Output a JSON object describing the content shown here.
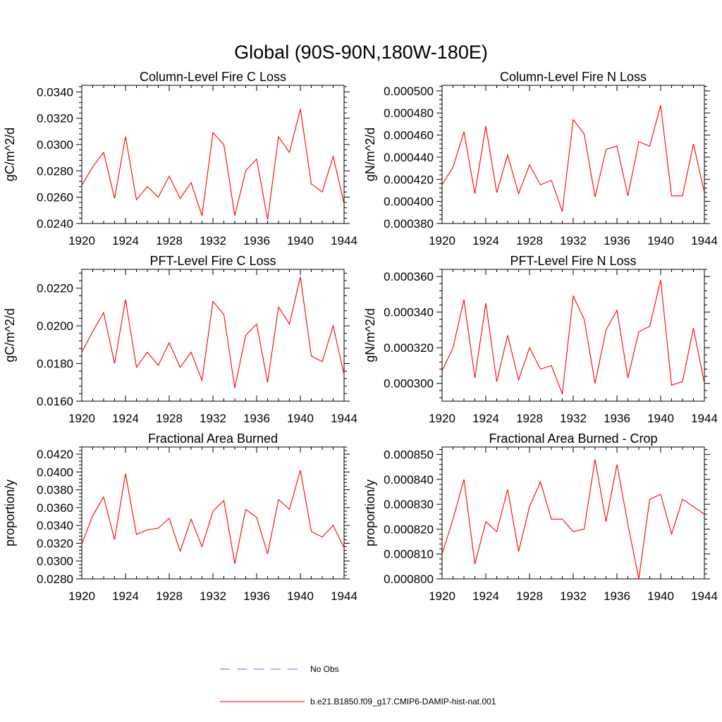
{
  "page_title": "Global (90S-90N,180W-180E)",
  "legend": {
    "entries": [
      {
        "label": "No Obs",
        "color": "#6a6acd",
        "style": "dashed"
      },
      {
        "label": "b.e21.B1850.f09_g17.CMIP6-DAMIP-hist-nat.001",
        "color": "#ff0000",
        "style": "solid"
      }
    ]
  },
  "chart_data": [
    {
      "type": "line",
      "title": "Column-Level Fire C Loss",
      "ylabel": "gC/m^2/d",
      "xlim": [
        1920,
        1944
      ],
      "ylim": [
        0.024,
        0.0345
      ],
      "xticks": [
        "1920",
        "1924",
        "1928",
        "1932",
        "1936",
        "1940",
        "1944"
      ],
      "yticks": [
        "0.0240",
        "0.0260",
        "0.0280",
        "0.0300",
        "0.0320",
        "0.0340"
      ],
      "x": [
        1920,
        1921,
        1922,
        1923,
        1924,
        1925,
        1926,
        1927,
        1928,
        1929,
        1930,
        1931,
        1932,
        1933,
        1934,
        1935,
        1936,
        1937,
        1938,
        1939,
        1940,
        1941,
        1942,
        1943,
        1944
      ],
      "series": [
        {
          "color": "#ff0000",
          "values": [
            0.0269,
            0.0283,
            0.0294,
            0.0259,
            0.0306,
            0.0258,
            0.0268,
            0.026,
            0.0276,
            0.0259,
            0.0271,
            0.0246,
            0.0309,
            0.03,
            0.0246,
            0.028,
            0.0289,
            0.0243,
            0.0306,
            0.0294,
            0.0327,
            0.027,
            0.0264,
            0.0291,
            0.0255
          ]
        }
      ]
    },
    {
      "type": "line",
      "title": "Column-Level Fire N Loss",
      "ylabel": "gN/m^2/d",
      "xlim": [
        1920,
        1944
      ],
      "ylim": [
        0.00038,
        0.000505
      ],
      "xticks": [
        "1920",
        "1924",
        "1928",
        "1932",
        "1936",
        "1940",
        "1944"
      ],
      "yticks": [
        "0.000380",
        "0.000400",
        "0.000420",
        "0.000440",
        "0.000460",
        "0.000480",
        "0.000500"
      ],
      "x": [
        1920,
        1921,
        1922,
        1923,
        1924,
        1925,
        1926,
        1927,
        1928,
        1929,
        1930,
        1931,
        1932,
        1933,
        1934,
        1935,
        1936,
        1937,
        1938,
        1939,
        1940,
        1941,
        1942,
        1943,
        1944
      ],
      "series": [
        {
          "color": "#ff0000",
          "values": [
            0.000415,
            0.000431,
            0.000463,
            0.000407,
            0.000468,
            0.000408,
            0.000442,
            0.000407,
            0.000433,
            0.000415,
            0.000419,
            0.000391,
            0.000474,
            0.000461,
            0.000404,
            0.000447,
            0.00045,
            0.000405,
            0.000454,
            0.00045,
            0.000487,
            0.000405,
            0.000405,
            0.000452,
            0.000408
          ]
        }
      ]
    },
    {
      "type": "line",
      "title": "PFT-Level Fire C Loss",
      "ylabel": "gC/m^2/d",
      "xlim": [
        1920,
        1944
      ],
      "ylim": [
        0.016,
        0.023
      ],
      "xticks": [
        "1920",
        "1924",
        "1928",
        "1932",
        "1936",
        "1940",
        "1944"
      ],
      "yticks": [
        "0.0160",
        "0.0180",
        "0.0200",
        "0.0220"
      ],
      "x": [
        1920,
        1921,
        1922,
        1923,
        1924,
        1925,
        1926,
        1927,
        1928,
        1929,
        1930,
        1931,
        1932,
        1933,
        1934,
        1935,
        1936,
        1937,
        1938,
        1939,
        1940,
        1941,
        1942,
        1943,
        1944
      ],
      "series": [
        {
          "color": "#ff0000",
          "values": [
            0.0186,
            0.0197,
            0.0207,
            0.018,
            0.0214,
            0.0178,
            0.0186,
            0.0179,
            0.0191,
            0.0178,
            0.0186,
            0.0171,
            0.0213,
            0.0206,
            0.0167,
            0.0195,
            0.0201,
            0.017,
            0.021,
            0.0201,
            0.0226,
            0.0184,
            0.0181,
            0.02,
            0.0174
          ]
        }
      ]
    },
    {
      "type": "line",
      "title": "PFT-Level Fire N Loss",
      "ylabel": "gN/m^2/d",
      "xlim": [
        1920,
        1944
      ],
      "ylim": [
        0.00029,
        0.000364
      ],
      "xticks": [
        "1920",
        "1924",
        "1928",
        "1932",
        "1936",
        "1940",
        "1944"
      ],
      "yticks": [
        "0.000300",
        "0.000320",
        "0.000340",
        "0.000360"
      ],
      "x": [
        1920,
        1921,
        1922,
        1923,
        1924,
        1925,
        1926,
        1927,
        1928,
        1929,
        1930,
        1931,
        1932,
        1933,
        1934,
        1935,
        1936,
        1937,
        1938,
        1939,
        1940,
        1941,
        1942,
        1943,
        1944
      ],
      "series": [
        {
          "color": "#ff0000",
          "values": [
            0.000307,
            0.00032,
            0.000347,
            0.000303,
            0.000345,
            0.000301,
            0.000327,
            0.000302,
            0.00032,
            0.000308,
            0.00031,
            0.000294,
            0.000349,
            0.000336,
            0.0003,
            0.00033,
            0.000341,
            0.000303,
            0.000329,
            0.000332,
            0.000358,
            0.000299,
            0.000301,
            0.000331,
            0.0003
          ]
        }
      ]
    },
    {
      "type": "line",
      "title": "Fractional Area Burned",
      "ylabel": "proportion/y",
      "xlim": [
        1920,
        1944
      ],
      "ylim": [
        0.028,
        0.0428
      ],
      "xticks": [
        "1920",
        "1924",
        "1928",
        "1932",
        "1936",
        "1940",
        "1944"
      ],
      "yticks": [
        "0.0280",
        "0.0300",
        "0.0320",
        "0.0340",
        "0.0360",
        "0.0380",
        "0.0400",
        "0.0420"
      ],
      "x": [
        1920,
        1921,
        1922,
        1923,
        1924,
        1925,
        1926,
        1927,
        1928,
        1929,
        1930,
        1931,
        1932,
        1933,
        1934,
        1935,
        1936,
        1937,
        1938,
        1939,
        1940,
        1941,
        1942,
        1943,
        1944
      ],
      "series": [
        {
          "color": "#ff0000",
          "values": [
            0.0319,
            0.0351,
            0.0372,
            0.0324,
            0.0398,
            0.033,
            0.0335,
            0.0337,
            0.0348,
            0.0311,
            0.0347,
            0.0316,
            0.0356,
            0.0368,
            0.0297,
            0.0358,
            0.0349,
            0.0308,
            0.0369,
            0.0358,
            0.0402,
            0.0333,
            0.0327,
            0.034,
            0.0315
          ]
        }
      ]
    },
    {
      "type": "line",
      "title": "Fractional Area Burned - Crop",
      "ylabel": "proportion/y",
      "xlim": [
        1920,
        1944
      ],
      "ylim": [
        0.0008,
        0.000853
      ],
      "xticks": [
        "1920",
        "1924",
        "1928",
        "1932",
        "1936",
        "1940",
        "1944"
      ],
      "yticks": [
        "0.000800",
        "0.000810",
        "0.000820",
        "0.000830",
        "0.000840",
        "0.000850"
      ],
      "x": [
        1920,
        1921,
        1922,
        1923,
        1924,
        1925,
        1926,
        1927,
        1928,
        1929,
        1930,
        1931,
        1932,
        1933,
        1934,
        1935,
        1936,
        1937,
        1938,
        1939,
        1940,
        1941,
        1942,
        1943,
        1944
      ],
      "series": [
        {
          "color": "#ff0000",
          "values": [
            0.00081,
            0.000824,
            0.00084,
            0.000806,
            0.000823,
            0.000819,
            0.000836,
            0.000811,
            0.000829,
            0.000839,
            0.000824,
            0.000824,
            0.000819,
            0.00082,
            0.000848,
            0.000823,
            0.000846,
            0.000822,
            0.0008,
            0.000832,
            0.000834,
            0.000818,
            0.000832,
            0.000829,
            0.000826
          ]
        }
      ]
    }
  ]
}
